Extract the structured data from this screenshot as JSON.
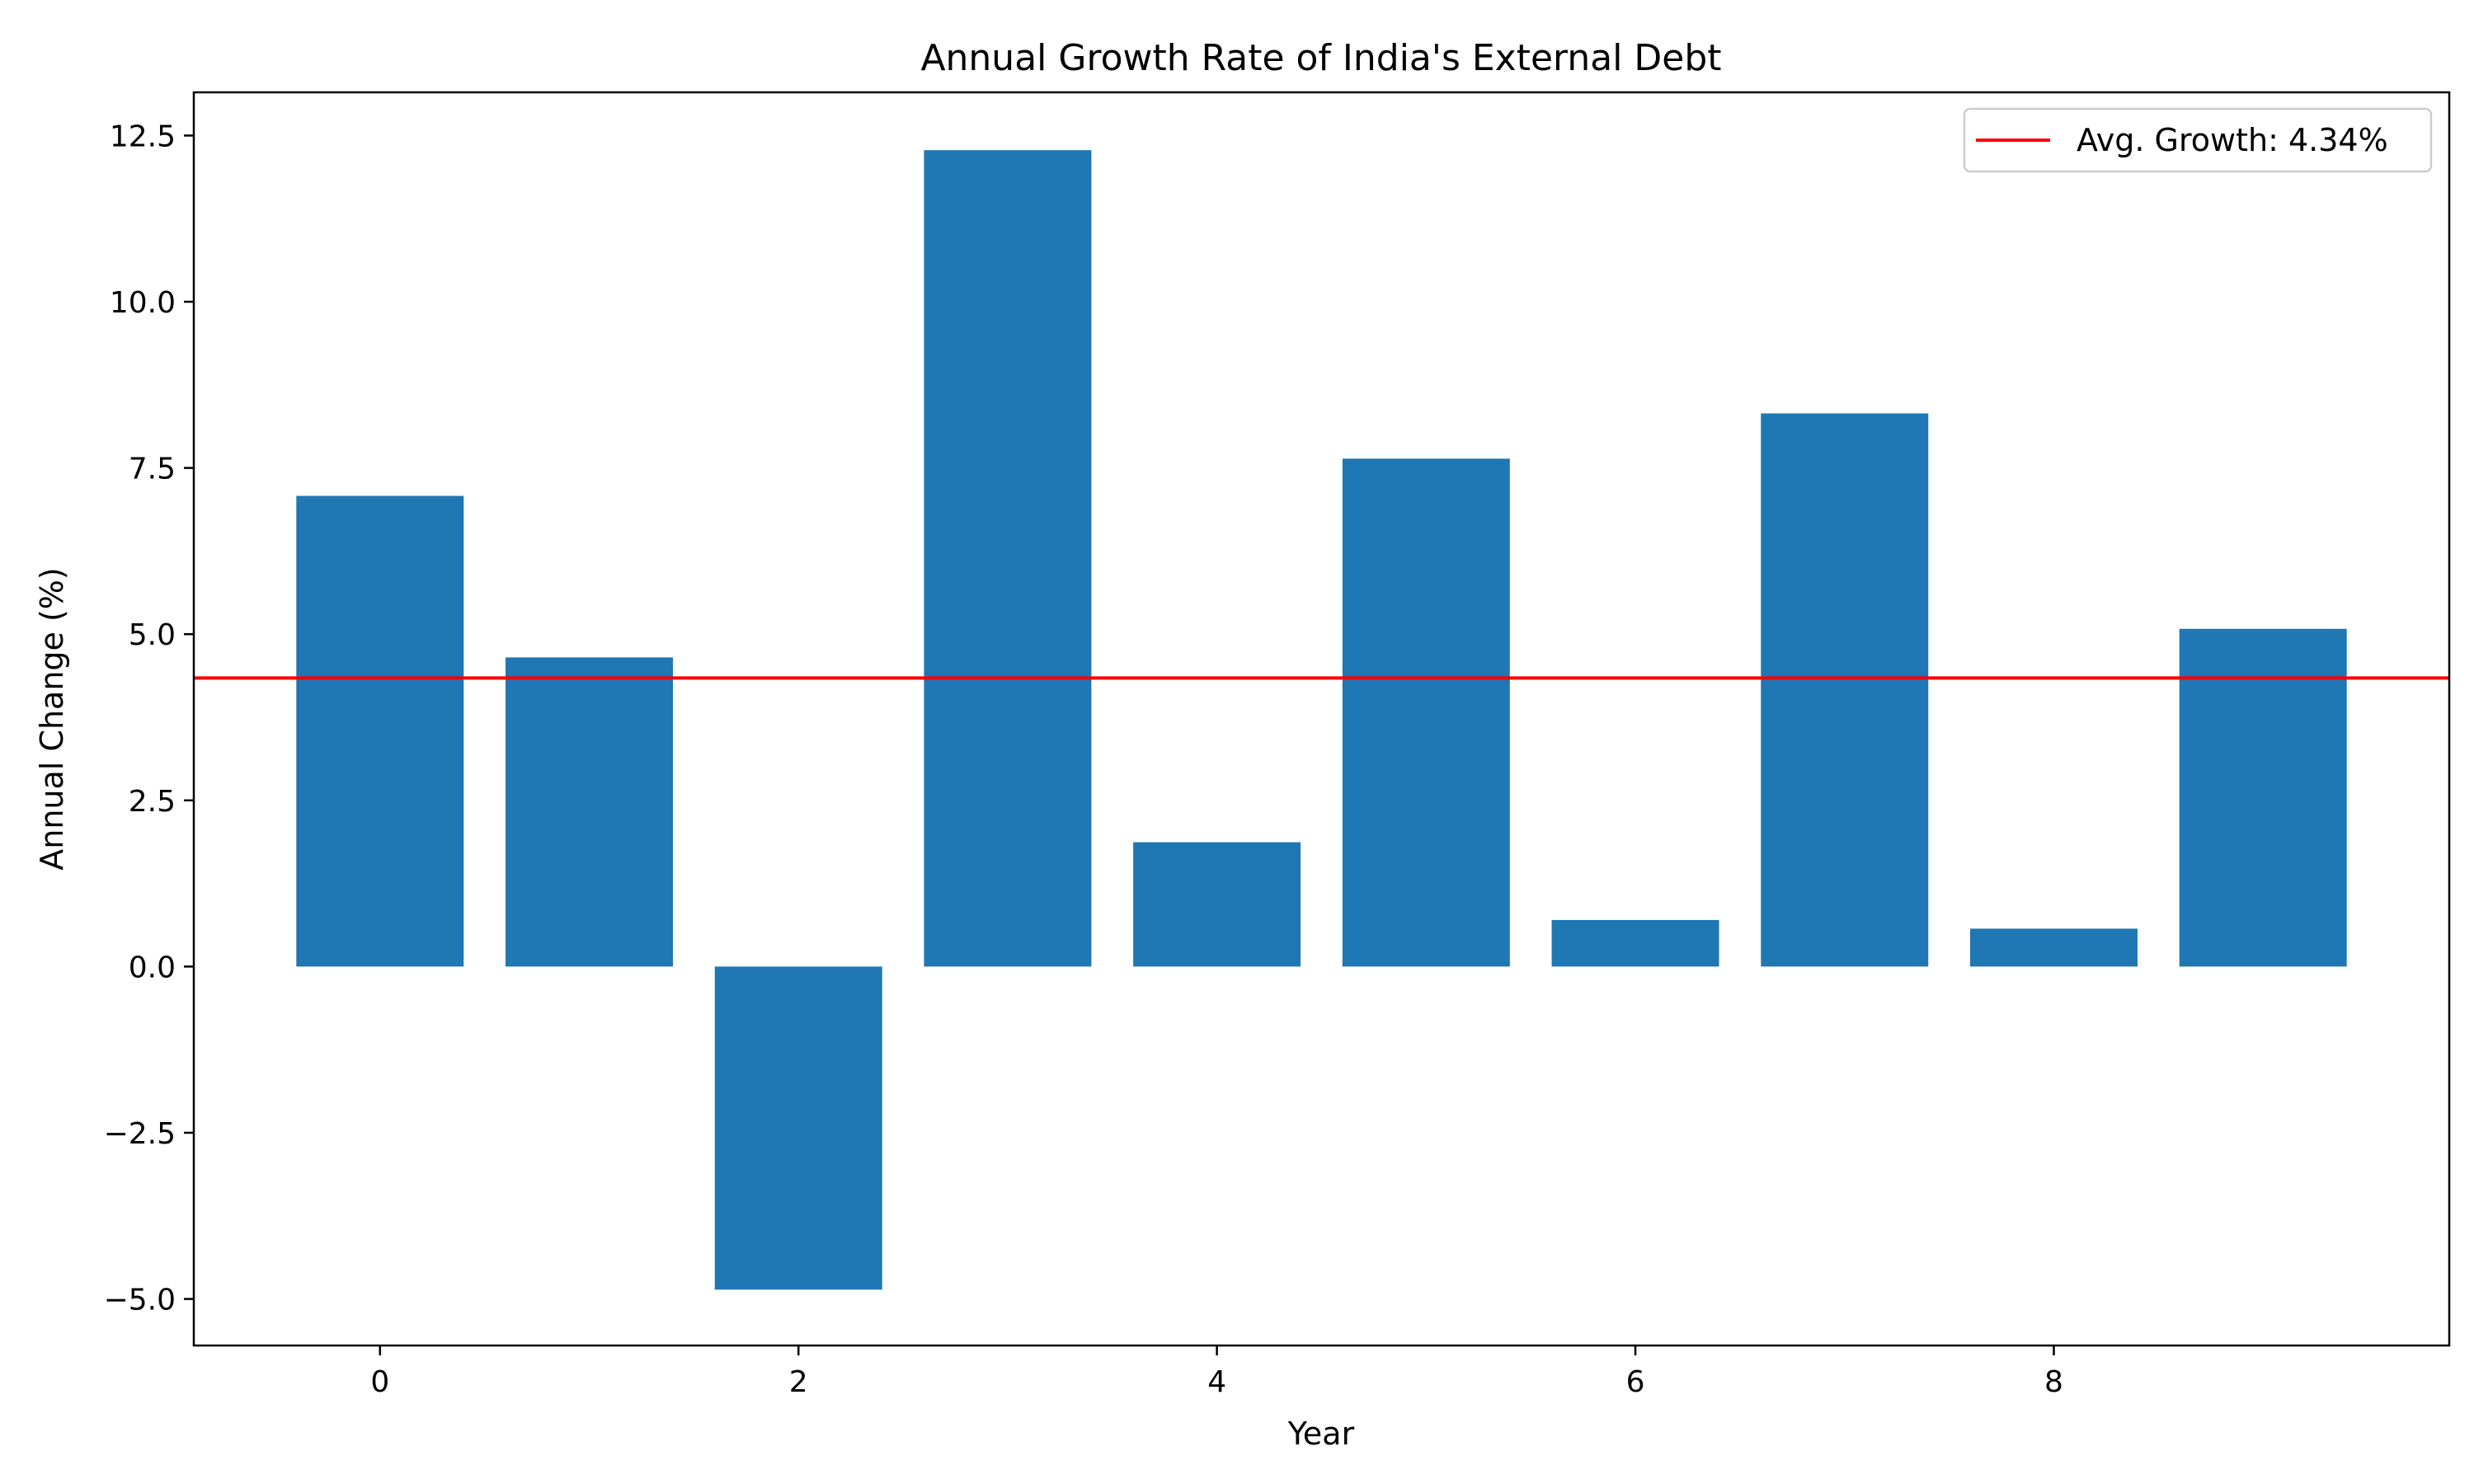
{
  "chart_data": {
    "type": "bar",
    "title": "Annual Growth Rate of India's External Debt",
    "xlabel": "Year",
    "ylabel": "Annual Change (%)",
    "x": [
      0,
      1,
      2,
      3,
      4,
      5,
      6,
      7,
      8,
      9
    ],
    "values": [
      7.08,
      4.65,
      -4.86,
      12.28,
      1.87,
      7.64,
      0.7,
      8.32,
      0.57,
      5.08
    ],
    "xlim": [
      -0.89,
      9.89
    ],
    "ylim": [
      -5.7,
      13.15
    ],
    "xticks": [
      0,
      2,
      4,
      6,
      8
    ],
    "xtick_labels": [
      "0",
      "2",
      "4",
      "6",
      "8"
    ],
    "yticks": [
      -5.0,
      -2.5,
      0.0,
      2.5,
      5.0,
      7.5,
      10.0,
      12.5
    ],
    "ytick_labels": [
      "−5.0",
      "−2.5",
      "0.0",
      "2.5",
      "5.0",
      "7.5",
      "10.0",
      "12.5"
    ],
    "bar_color": "#1f77b4",
    "average_line": {
      "value": 4.34,
      "color": "#ff0000",
      "label": "Avg. Growth: 4.34%"
    },
    "legend": {
      "placement": "top-right"
    },
    "grid": false
  }
}
